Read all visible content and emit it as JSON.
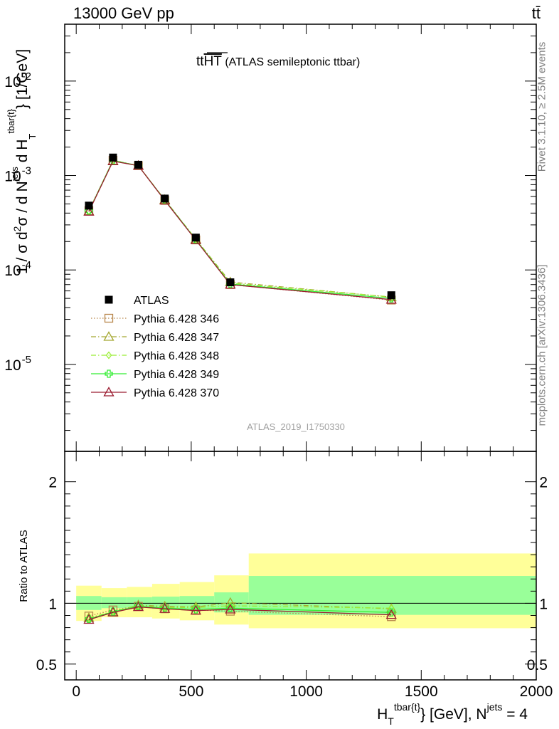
{
  "header": {
    "left": "13000 GeV pp",
    "right": "tt̄"
  },
  "side": {
    "rivet": "Rivet 3.1.10, ≥ 2.5M events",
    "mcplots": "mcplots.cern.ch [arXiv:1306.3436]"
  },
  "analysis_label": "ATLAS_2019_I1750330",
  "colors": {
    "band_outer": "#ffff99",
    "band_inner": "#99ff99",
    "data": "#000000"
  },
  "chart_data": [
    {
      "type": "line",
      "panel": "main",
      "title_main": "tt",
      "title_over": "HT",
      "title_rest": " (ATLAS semileptonic ttbar)",
      "ylabel": "1 / σ d²σ / d N^{jets} d H_T^{tbar{t}} [1/GeV]",
      "yscale": "log",
      "ylim": [
        1.2e-06,
        0.04
      ],
      "xlim": [
        -50,
        2000
      ],
      "y_ticks": [
        "10^-5",
        "10^-4",
        "10^-3",
        "10^-2"
      ],
      "x": [
        55,
        160,
        270,
        385,
        520,
        670,
        1370
      ],
      "series": [
        {
          "name": "ATLAS",
          "color": "#000000",
          "marker": "square-filled",
          "line": "none",
          "values": [
            0.00048,
            0.00155,
            0.0013,
            0.00057,
            0.00022,
            7.4e-05,
            5.4e-05
          ]
        },
        {
          "name": "Pythia 6.428 346",
          "color": "#b8864b",
          "marker": "square-open",
          "line": "dotted",
          "values": [
            0.000425,
            0.00145,
            0.00127,
            0.000545,
            0.000208,
            7e-05,
            4.8e-05
          ]
        },
        {
          "name": "Pythia 6.428 347",
          "color": "#a5a832",
          "marker": "triangle-open",
          "line": "dashdot",
          "values": [
            0.000418,
            0.00143,
            0.00127,
            0.000555,
            0.000212,
            7.45e-05,
            5.15e-05
          ]
        },
        {
          "name": "Pythia 6.428 348",
          "color": "#99ee33",
          "marker": "diamond-open",
          "line": "dashdot",
          "values": [
            0.00042,
            0.00145,
            0.00127,
            0.00055,
            0.000212,
            7.25e-05,
            5.18e-05
          ]
        },
        {
          "name": "Pythia 6.428 349",
          "color": "#33ee33",
          "marker": "cross-open",
          "line": "solid",
          "values": [
            0.00042,
            0.00144,
            0.00127,
            0.00055,
            0.000209,
            7.1e-05,
            5e-05
          ]
        },
        {
          "name": "Pythia 6.428 370",
          "color": "#9b1c30",
          "marker": "triangle-open",
          "line": "solid",
          "values": [
            0.000415,
            0.00142,
            0.00127,
            0.000545,
            0.000207,
            7e-05,
            4.85e-05
          ]
        }
      ]
    },
    {
      "type": "line",
      "panel": "ratio",
      "ylabel": "Ratio to ATLAS",
      "xlabel": "H_T^{tbar{t}} [GeV], N^{jets} = 4",
      "ylim": [
        0.37,
        2.25
      ],
      "xlim": [
        -50,
        2000
      ],
      "y_ticks": [
        "0.5",
        "1",
        "2"
      ],
      "x_ticks": [
        "0",
        "500",
        "1000",
        "1500",
        "2000"
      ],
      "reference_line": 1,
      "bands": [
        {
          "x_lo": 0,
          "x_hi": 110,
          "outer": [
            0.855,
            1.145
          ],
          "inner": [
            0.945,
            1.06
          ]
        },
        {
          "x_lo": 110,
          "x_hi": 220,
          "outer": [
            0.885,
            1.125
          ],
          "inner": [
            0.96,
            1.05
          ]
        },
        {
          "x_lo": 220,
          "x_hi": 330,
          "outer": [
            0.885,
            1.135
          ],
          "inner": [
            0.965,
            1.05
          ]
        },
        {
          "x_lo": 330,
          "x_hi": 450,
          "outer": [
            0.875,
            1.16
          ],
          "inner": [
            0.955,
            1.055
          ]
        },
        {
          "x_lo": 450,
          "x_hi": 600,
          "outer": [
            0.86,
            1.175
          ],
          "inner": [
            0.95,
            1.06
          ]
        },
        {
          "x_lo": 600,
          "x_hi": 750,
          "outer": [
            0.825,
            1.23
          ],
          "inner": [
            0.925,
            1.09
          ]
        },
        {
          "x_lo": 750,
          "x_hi": 2000,
          "outer": [
            0.795,
            1.41
          ],
          "inner": [
            0.905,
            1.225
          ]
        }
      ],
      "series": [
        {
          "name": "Pythia 6.428 346",
          "color": "#b8864b",
          "marker": "square-open",
          "line": "dotted",
          "values": [
            0.895,
            0.945,
            0.975,
            0.955,
            0.945,
            0.935,
            0.89
          ]
        },
        {
          "name": "Pythia 6.428 347",
          "color": "#a5a832",
          "marker": "triangle-open",
          "line": "dashdot",
          "values": [
            0.88,
            0.93,
            0.985,
            0.975,
            0.97,
            1.005,
            0.955
          ]
        },
        {
          "name": "Pythia 6.428 348",
          "color": "#99ee33",
          "marker": "diamond-open",
          "line": "dashdot",
          "values": [
            0.875,
            0.935,
            0.98,
            0.965,
            0.965,
            0.98,
            0.96
          ]
        },
        {
          "name": "Pythia 6.428 349",
          "color": "#33ee33",
          "marker": "cross-open",
          "line": "solid",
          "values": [
            0.87,
            0.93,
            0.975,
            0.96,
            0.95,
            0.96,
            0.925
          ]
        },
        {
          "name": "Pythia 6.428 370",
          "color": "#9b1c30",
          "marker": "triangle-open",
          "line": "solid",
          "values": [
            0.865,
            0.925,
            0.97,
            0.955,
            0.94,
            0.95,
            0.905
          ]
        }
      ]
    }
  ]
}
